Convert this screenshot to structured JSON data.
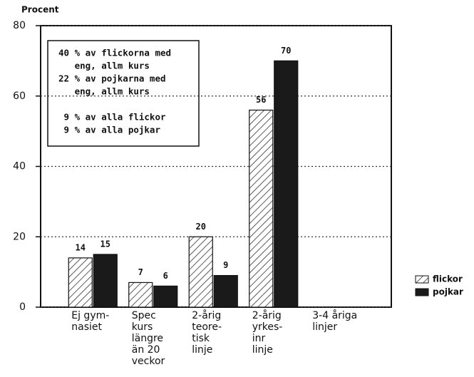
{
  "chart_data": {
    "type": "bar",
    "y_label": "Procent",
    "categories": [
      [
        "Ej gym-",
        "nasiet"
      ],
      [
        "Spec",
        "kurs",
        "längre",
        "än 20",
        "veckor"
      ],
      [
        "2-årig",
        "teore-",
        "tisk",
        "linje"
      ],
      [
        "2-årig",
        "yrkes-",
        "inr",
        "linje"
      ],
      [
        "3-4 åriga",
        "linjer"
      ]
    ],
    "series": [
      {
        "name": "flickor",
        "color": "#ffffff",
        "pattern": "hatch",
        "values": [
          14,
          7,
          20,
          56,
          null
        ]
      },
      {
        "name": "pojkar",
        "color": "#1a1a1a",
        "values": [
          15,
          6,
          9,
          70,
          null
        ]
      }
    ],
    "ylim": [
      0,
      80
    ],
    "yticks": [
      0,
      20,
      40,
      60,
      80
    ],
    "grid": true,
    "legend": "right",
    "annotation": [
      [
        "40 % av flickorna med",
        "   eng, allm kurs",
        "22 % av pojkarna med",
        "   eng, allm kurs"
      ],
      [
        " 9 % av alla flickor",
        " 9 % av alla pojkar"
      ]
    ]
  }
}
